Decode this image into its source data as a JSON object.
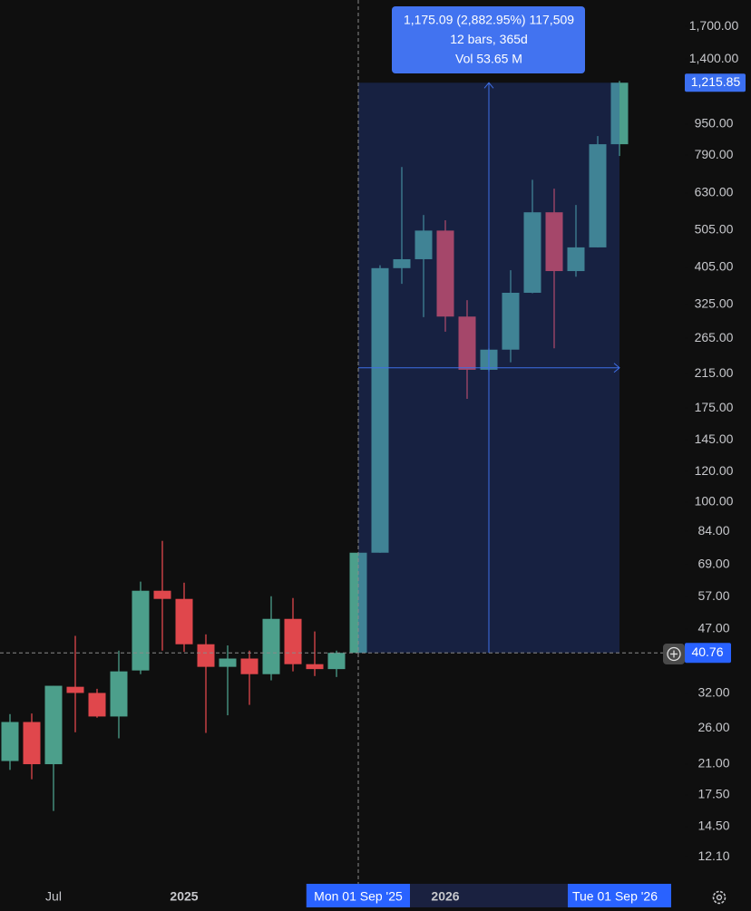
{
  "chart_data": {
    "type": "candlestick",
    "log_scale": true,
    "up_color": "#4c9f8b",
    "down_color": "#e0474c",
    "categories": [
      null,
      null,
      "Jul",
      null,
      null,
      null,
      null,
      null,
      "2025",
      null,
      null,
      null,
      null,
      null,
      null,
      null,
      "Mon 01 Sep '25",
      null,
      null,
      null,
      "2026",
      null,
      null,
      null,
      null,
      null,
      null,
      null,
      "Tue 01 Sep '26"
    ],
    "x_highlight": [
      16,
      28
    ],
    "open": [
      21.4,
      27.0,
      21.0,
      33.3,
      32.1,
      27.9,
      36.7,
      59.0,
      56.2,
      42.9,
      37.5,
      39.4,
      35.9,
      49.9,
      38.1,
      37.0,
      40.76,
      74.0,
      403,
      425,
      504,
      302,
      220,
      248,
      348,
      562,
      396,
      456,
      843
    ],
    "high": [
      28.3,
      28.4,
      33.5,
      45.1,
      32.9,
      41.3,
      62.3,
      79.4,
      61.9,
      45.5,
      42.6,
      41.3,
      57.1,
      56.5,
      46.3,
      41.3,
      74.0,
      410,
      736,
      553,
      536,
      333,
      250,
      398,
      682,
      647,
      587,
      885,
      1229
    ],
    "low": [
      20.3,
      19.2,
      15.9,
      25.4,
      27.7,
      24.5,
      35.9,
      41.3,
      41.0,
      25.3,
      28.1,
      29.9,
      34.6,
      36.5,
      35.5,
      35.3,
      40.76,
      74.0,
      367,
      301,
      276,
      185,
      218,
      230,
      347,
      250,
      383,
      456,
      786
    ],
    "close": [
      27.0,
      21.0,
      33.5,
      32.1,
      27.9,
      36.5,
      59.0,
      56.2,
      42.9,
      37.5,
      39.4,
      35.9,
      49.9,
      38.1,
      37.0,
      40.76,
      74.0,
      403,
      425,
      504,
      302,
      220,
      248,
      348,
      562,
      396,
      456,
      843,
      1215.85
    ],
    "ylim": [
      10.3,
      1990
    ],
    "yticks": [
      {
        "value": 1700,
        "label": "1,700.00"
      },
      {
        "value": 1400,
        "label": "1,400.00"
      },
      {
        "value": 950,
        "label": "950.00"
      },
      {
        "value": 790,
        "label": "790.00"
      },
      {
        "value": 630,
        "label": "630.00"
      },
      {
        "value": 505,
        "label": "505.00"
      },
      {
        "value": 405,
        "label": "405.00"
      },
      {
        "value": 325,
        "label": "325.00"
      },
      {
        "value": 265,
        "label": "265.00"
      },
      {
        "value": 215,
        "label": "215.00"
      },
      {
        "value": 175,
        "label": "175.00"
      },
      {
        "value": 145,
        "label": "145.00"
      },
      {
        "value": 120,
        "label": "120.00"
      },
      {
        "value": 100,
        "label": "100.00"
      },
      {
        "value": 84,
        "label": "84.00"
      },
      {
        "value": 69,
        "label": "69.00"
      },
      {
        "value": 57,
        "label": "57.00"
      },
      {
        "value": 47,
        "label": "47.00"
      },
      {
        "value": 32,
        "label": "32.00"
      },
      {
        "value": 26,
        "label": "26.00"
      },
      {
        "value": 21,
        "label": "21.00"
      },
      {
        "value": 17.5,
        "label": "17.50"
      },
      {
        "value": 14.5,
        "label": "14.50"
      },
      {
        "value": 12.1,
        "label": "12.10"
      }
    ],
    "crosshair_price": 40.76,
    "last_price": {
      "value": 1215.85,
      "label": "1,215.85"
    },
    "measure_label": [
      "1,175.09 (2,882.95%) 117,509",
      "12 bars, 365d",
      "Vol 53.65 M"
    ]
  }
}
